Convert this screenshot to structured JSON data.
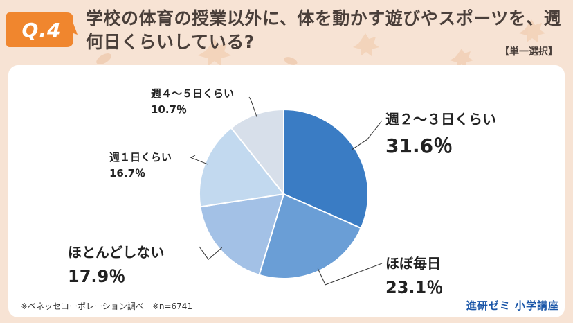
{
  "question": {
    "badge": "Q.4",
    "title": "学校の体育の授業以外に、体を動かす遊びやスポーツを、週何日くらいしている?",
    "select_type": "【単一選択】"
  },
  "chart_data": {
    "type": "pie",
    "title": "",
    "slices": [
      {
        "label": "週２〜３日くらい",
        "value": 31.6,
        "value_label": "31.6％",
        "color": "#3a7cc4"
      },
      {
        "label": "ほぼ毎日",
        "value": 23.1,
        "value_label": "23.1％",
        "color": "#6a9ed6"
      },
      {
        "label": "ほとんどしない",
        "value": 17.9,
        "value_label": "17.9％",
        "color": "#a3c1e6"
      },
      {
        "label": "週１日くらい",
        "value": 16.7,
        "value_label": "16.7％",
        "color": "#c2d9ef"
      },
      {
        "label": "週４〜５日くらい",
        "value": 10.7,
        "value_label": "10.7％",
        "color": "#d7dfea"
      }
    ]
  },
  "footer": {
    "note": "※ベネッセコーポレーション調べ　※n=6741",
    "brand": "進研ゼミ 小学講座"
  },
  "colors": {
    "badge": "#f0862e",
    "title_text": "#4a3f3a",
    "brand": "#1a56a8"
  }
}
